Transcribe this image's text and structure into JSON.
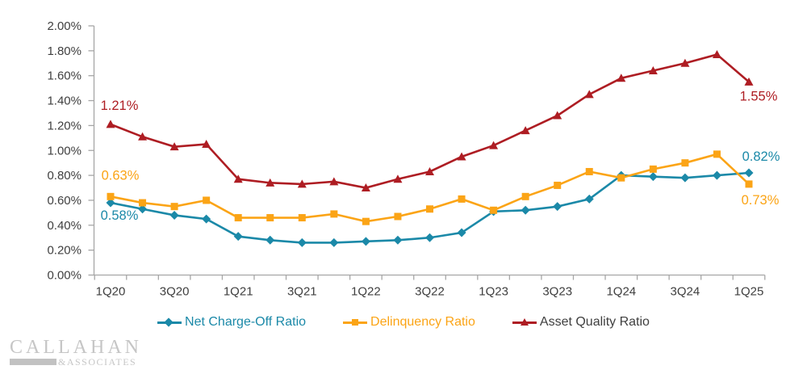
{
  "chart_data": {
    "type": "line",
    "title": "",
    "categories": [
      "1Q20",
      "2Q20",
      "3Q20",
      "4Q20",
      "1Q21",
      "2Q21",
      "3Q21",
      "4Q21",
      "1Q22",
      "2Q22",
      "3Q22",
      "4Q22",
      "1Q23",
      "2Q23",
      "3Q23",
      "4Q23",
      "1Q24",
      "2Q24",
      "3Q24",
      "4Q24",
      "1Q25"
    ],
    "x_tick_labels_shown": [
      "1Q20",
      "3Q20",
      "1Q21",
      "3Q21",
      "1Q22",
      "3Q22",
      "1Q23",
      "3Q23",
      "1Q24",
      "3Q24",
      "1Q25"
    ],
    "y_tick_labels": [
      "0.00%",
      "0.20%",
      "0.40%",
      "0.60%",
      "0.80%",
      "1.00%",
      "1.20%",
      "1.40%",
      "1.60%",
      "1.80%",
      "2.00%"
    ],
    "ylim": [
      0,
      2.0
    ],
    "y_tick_step": 0.2,
    "grid": false,
    "legend_position": "bottom",
    "axis_color": "#a6a6a6",
    "tick_label_color": "#3f3f3f",
    "series": [
      {
        "name": "Net Charge-Off Ratio",
        "marker": "diamond",
        "color": "#1b89a8",
        "label_color": "#1b89a8",
        "values": [
          0.58,
          0.53,
          0.48,
          0.45,
          0.31,
          0.28,
          0.26,
          0.26,
          0.27,
          0.28,
          0.3,
          0.34,
          0.51,
          0.52,
          0.55,
          0.61,
          0.8,
          0.79,
          0.78,
          0.8,
          0.82
        ],
        "start_label": "0.58%",
        "end_label": "0.82%"
      },
      {
        "name": "Delinquency Ratio",
        "marker": "square",
        "color": "#fba416",
        "label_color": "#fba416",
        "values": [
          0.63,
          0.58,
          0.55,
          0.6,
          0.46,
          0.46,
          0.46,
          0.49,
          0.43,
          0.47,
          0.53,
          0.61,
          0.52,
          0.63,
          0.72,
          0.83,
          0.78,
          0.85,
          0.9,
          0.97,
          0.73
        ],
        "start_label": "0.63%",
        "end_label": "0.73%"
      },
      {
        "name": "Asset Quality Ratio",
        "marker": "triangle",
        "color": "#ae1d23",
        "label_color": "#3f3f3f",
        "values": [
          1.21,
          1.11,
          1.03,
          1.05,
          0.77,
          0.74,
          0.73,
          0.75,
          0.7,
          0.77,
          0.83,
          0.95,
          1.04,
          1.16,
          1.28,
          1.45,
          1.58,
          1.64,
          1.7,
          1.77,
          1.55
        ],
        "start_label": "1.21%",
        "end_label": "1.55%"
      }
    ],
    "annotations": [
      {
        "series_index": 2,
        "point": "first",
        "text": "1.21%"
      },
      {
        "series_index": 1,
        "point": "first",
        "text": "0.63%"
      },
      {
        "series_index": 0,
        "point": "first",
        "text": "0.58%"
      },
      {
        "series_index": 2,
        "point": "last",
        "text": "1.55%"
      },
      {
        "series_index": 0,
        "point": "last",
        "text": "0.82%"
      },
      {
        "series_index": 1,
        "point": "last",
        "text": "0.73%"
      }
    ]
  },
  "legend": {
    "items": [
      {
        "label": "Net Charge-Off Ratio"
      },
      {
        "label": "Delinquency Ratio"
      },
      {
        "label": "Asset Quality Ratio"
      }
    ]
  },
  "logo": {
    "name": "CALLAHAN",
    "amp": "&",
    "subname": "ASSOCIATES"
  }
}
